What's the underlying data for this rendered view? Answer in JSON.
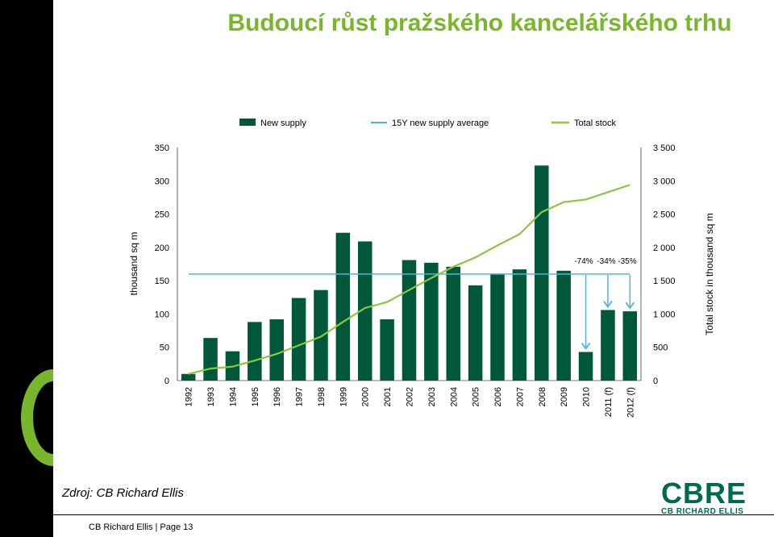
{
  "title": "Budoucí růst pražského kancelářského trhu",
  "source": "Zdroj: CB Richard Ellis",
  "footer": "CB Richard Ellis | Page 13",
  "logo": {
    "main": "CBRE",
    "sub": "CB RICHARD ELLIS"
  },
  "colors": {
    "bar": "#00583a",
    "average": "#4cb3e0",
    "stock": "#8dc63f",
    "title": "#78b62c",
    "arrow": "#4cb3e0"
  },
  "chart_data": {
    "type": "bar",
    "categories": [
      "1992",
      "1993",
      "1994",
      "1995",
      "1996",
      "1997",
      "1998",
      "1999",
      "2000",
      "2001",
      "2002",
      "2003",
      "2004",
      "2005",
      "2006",
      "2007",
      "2008",
      "2009",
      "2010",
      "2011 (f)",
      "2012 (f)"
    ],
    "ylabel": "thousand sq m",
    "y2label": "Total stock in thousand sq m",
    "ylim": [
      0,
      350
    ],
    "y2lim": [
      0,
      3500
    ],
    "yticks": [
      "0",
      "50",
      "100",
      "150",
      "200",
      "250",
      "300",
      "350"
    ],
    "y2ticks": [
      "0",
      "500",
      "1 000",
      "1 500",
      "2 000",
      "2 500",
      "3 000",
      "3 500"
    ],
    "legend": [
      "New supply",
      "15Y new supply average",
      "Total stock"
    ],
    "legend_position": "top",
    "series": [
      {
        "name": "New supply",
        "type": "bar",
        "values": [
          10,
          64,
          44,
          88,
          92,
          124,
          136,
          222,
          209,
          92,
          181,
          177,
          171,
          143,
          160,
          167,
          323,
          165,
          43,
          106,
          104
        ]
      },
      {
        "name": "15Y new supply average",
        "type": "line",
        "values": [
          160,
          160,
          160,
          160,
          160,
          160,
          160,
          160,
          160,
          160,
          160,
          160,
          160,
          160,
          160,
          160,
          160,
          160,
          160,
          160,
          160
        ]
      },
      {
        "name": "Total stock",
        "type": "line",
        "values": [
          100,
          180,
          210,
          300,
          400,
          530,
          660,
          880,
          1090,
          1180,
          1360,
          1540,
          1710,
          1850,
          2030,
          2200,
          2530,
          2680,
          2720,
          2830,
          2940
        ]
      }
    ],
    "annotations": [
      "-74%",
      "-34%",
      "-35%"
    ]
  }
}
